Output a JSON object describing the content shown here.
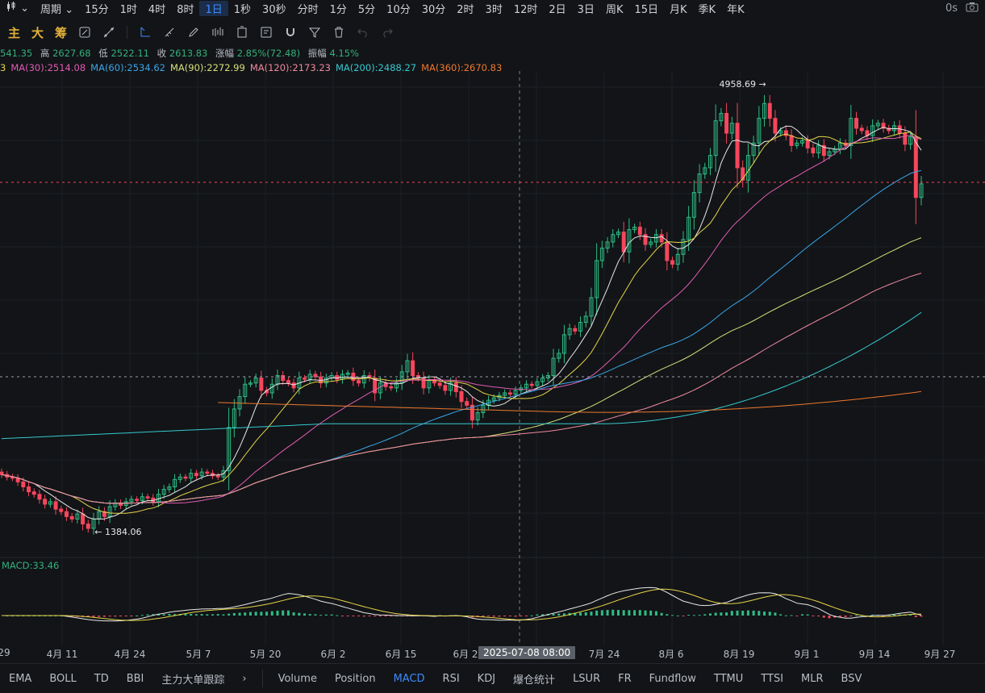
{
  "topbar": {
    "style_icon": "candle-style-icon",
    "period_label": "周期",
    "intervals": [
      "15分",
      "1时",
      "4时",
      "8时",
      "1日",
      "1秒",
      "30秒",
      "分时",
      "1分",
      "5分",
      "10分",
      "30分",
      "2时",
      "3时",
      "12时",
      "2日",
      "3日",
      "周K",
      "15日",
      "月K",
      "季K",
      "年K"
    ],
    "active_interval": "1日",
    "countdown": "0s",
    "camera_icon": "camera-icon"
  },
  "toolbar": {
    "texts": [
      "主",
      "大",
      "筹"
    ],
    "icons": [
      "indicator-edit-icon",
      "crosshair-tool-icon",
      "line-draw-icon",
      "ruler-icon",
      "pencil-icon",
      "pattern-icon",
      "layout-icon",
      "notes-icon",
      "magnet-icon",
      "filter-icon",
      "trash-icon",
      "undo-icon",
      "redo-icon"
    ]
  },
  "info": {
    "open": "541.35",
    "high_label": "高",
    "high": "2627.68",
    "low_label": "低",
    "low": "2522.11",
    "close_label": "收",
    "close": "2613.83",
    "change_label": "涨幅",
    "change": "2.85%(72.48)",
    "amp_label": "振幅",
    "amp": "4.15%"
  },
  "ma_labels": [
    {
      "text": "3",
      "color": "#e8d54a"
    },
    {
      "text": "MA(30):2514.08",
      "color": "#e05bb3"
    },
    {
      "text": "MA(60):2534.62",
      "color": "#3aa6e8"
    },
    {
      "text": "MA(90):2272.99",
      "color": "#d7e07a"
    },
    {
      "text": "MA(120):2173.23",
      "color": "#f08aa0"
    },
    {
      "text": "MA(200):2488.27",
      "color": "#35c9d0"
    },
    {
      "text": "MA(360):2670.83",
      "color": "#f0782e"
    }
  ],
  "annotations": {
    "high_label": "4958.69 →",
    "low_label": "← 1384.06"
  },
  "macd_label": "MACD:33.46",
  "crosshair_date": "2025-07-08 08:00",
  "xaxis_ticks": [
    "29",
    "4月 11",
    "4月 24",
    "5月 7",
    "5月 20",
    "6月 2",
    "6月 15",
    "6月 2",
    "7月 24",
    "8月 6",
    "8月 19",
    "9月 1",
    "9月 14",
    "9月 27"
  ],
  "bottombar": {
    "left": [
      "EMA",
      "BOLL",
      "TD",
      "BBI",
      "主力大单跟踪"
    ],
    "chevron_icon": "chevron-right-icon",
    "right": [
      "Volume",
      "Position",
      "MACD",
      "RSI",
      "KDJ",
      "爆仓统计",
      "LSUR",
      "FR",
      "Fundflow",
      "TTMU",
      "TTSI",
      "MLR",
      "BSV"
    ],
    "active": "MACD"
  },
  "colors": {
    "up": "#2ebd85",
    "down": "#f6465d",
    "bg": "#121417",
    "accent": "#3d8bff"
  },
  "chart_data": {
    "type": "candlestick",
    "x_start": "2025-03-29",
    "interval": "1 day",
    "price_high": 4958.69,
    "price_low": 1384.06,
    "closes": [
      1820,
      1800,
      1790,
      1760,
      1720,
      1680,
      1660,
      1620,
      1580,
      1600,
      1540,
      1520,
      1480,
      1460,
      1500,
      1420,
      1384.06,
      1460,
      1520,
      1480,
      1560,
      1590,
      1570,
      1600,
      1620,
      1610,
      1640,
      1630,
      1600,
      1660,
      1700,
      1720,
      1780,
      1800,
      1790,
      1830,
      1810,
      1840,
      1830,
      1810,
      1800,
      1850,
      2200,
      2350,
      2450,
      2550,
      2560,
      2600,
      2500,
      2480,
      2550,
      2620,
      2580,
      2560,
      2520,
      2600,
      2590,
      2630,
      2610,
      2560,
      2600,
      2620,
      2590,
      2630,
      2640,
      2580,
      2560,
      2620,
      2600,
      2480,
      2560,
      2530,
      2520,
      2560,
      2650,
      2740,
      2620,
      2600,
      2520,
      2580,
      2560,
      2540,
      2500,
      2560,
      2490,
      2410,
      2380,
      2260,
      2320,
      2380,
      2420,
      2440,
      2460,
      2480,
      2470,
      2500,
      2520,
      2550,
      2540,
      2570,
      2600,
      2620,
      2760,
      2800,
      2950,
      3000,
      2980,
      3050,
      3100,
      3250,
      3550,
      3650,
      3700,
      3760,
      3780,
      3620,
      3800,
      3820,
      3760,
      3680,
      3700,
      3760,
      3700,
      3550,
      3520,
      3600,
      3720,
      3900,
      4100,
      4250,
      4300,
      4400,
      4680,
      4740,
      4580,
      4660,
      4300,
      4200,
      4400,
      4500,
      4700,
      4820,
      4700,
      4580,
      4600,
      4560,
      4480,
      4500,
      4520,
      4460,
      4420,
      4480,
      4400,
      4430,
      4450,
      4500,
      4480,
      4700,
      4620,
      4600,
      4560,
      4640,
      4660,
      4620,
      4600,
      4640,
      4580,
      4490,
      4550,
      4060,
      4170
    ],
    "ma_series": [
      {
        "name": "MA(30)",
        "color": "#e05bb3",
        "last": 2514.08
      },
      {
        "name": "MA(60)",
        "color": "#3aa6e8",
        "last": 2534.62
      },
      {
        "name": "MA(90)",
        "color": "#d7e07a",
        "last": 2272.99
      },
      {
        "name": "MA(120)",
        "color": "#f08aa0",
        "last": 2173.23
      },
      {
        "name": "MA(200)",
        "color": "#35c9d0",
        "last": 2488.27
      },
      {
        "name": "MA(360)",
        "color": "#f0782e",
        "last": 2670.83
      }
    ],
    "macd": 33.46
  }
}
